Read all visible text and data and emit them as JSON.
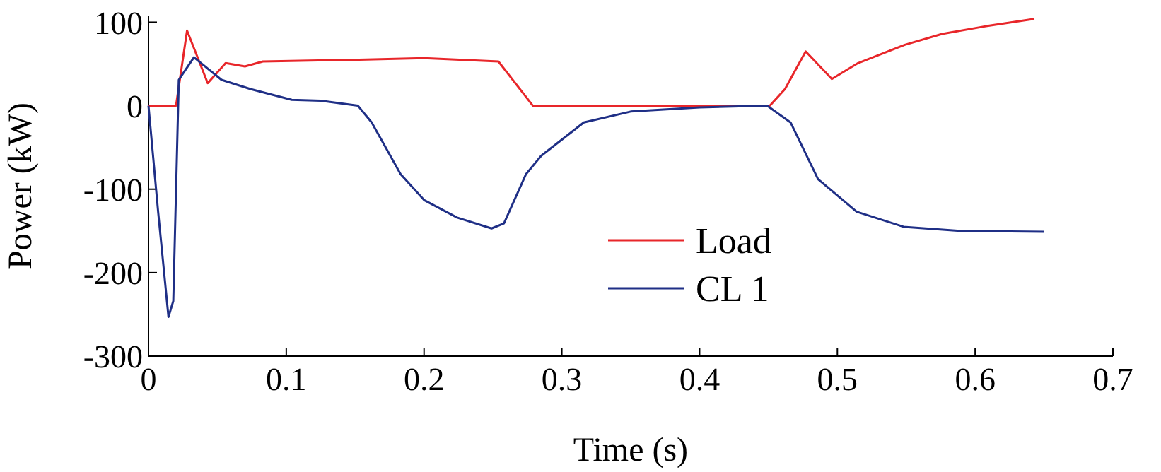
{
  "chart_data": {
    "type": "line",
    "xlabel": "Time (s)",
    "ylabel": "Power (kW)",
    "xlim": [
      0,
      0.7
    ],
    "ylim": [
      -300,
      108
    ],
    "xticks": [
      0,
      0.1,
      0.2,
      0.3,
      0.4,
      0.5,
      0.6,
      0.7
    ],
    "yticks": [
      -300,
      -200,
      -100,
      0,
      100
    ],
    "legend": "bottom",
    "grid": false,
    "series": [
      {
        "name": "Load",
        "color": "#e8262a",
        "x": [
          0,
          0.02,
          0.028,
          0.043,
          0.056,
          0.07,
          0.083,
          0.15,
          0.2,
          0.254,
          0.279,
          0.451,
          0.462,
          0.477,
          0.496,
          0.515,
          0.549,
          0.576,
          0.607,
          0.643
        ],
        "values": [
          0,
          0,
          90,
          27,
          51,
          47,
          53,
          55,
          57,
          53,
          0,
          0,
          20,
          65,
          32,
          51,
          73,
          86,
          95,
          104
        ]
      },
      {
        "name": "CL 1",
        "color": "#1f2f86",
        "x": [
          0,
          0.007,
          0.0145,
          0.018,
          0.022,
          0.033,
          0.053,
          0.074,
          0.104,
          0.125,
          0.152,
          0.162,
          0.183,
          0.2,
          0.224,
          0.249,
          0.258,
          0.274,
          0.285,
          0.316,
          0.35,
          0.4,
          0.449,
          0.466,
          0.486,
          0.514,
          0.548,
          0.589,
          0.65
        ],
        "values": [
          0,
          -127,
          -253,
          -234,
          31,
          58,
          31,
          20,
          7,
          6,
          0,
          -20,
          -82,
          -113,
          -134,
          -147,
          -141,
          -82,
          -60,
          -20,
          -7,
          -2,
          0,
          -20,
          -88,
          -127,
          -145,
          -150,
          -151
        ]
      }
    ]
  }
}
